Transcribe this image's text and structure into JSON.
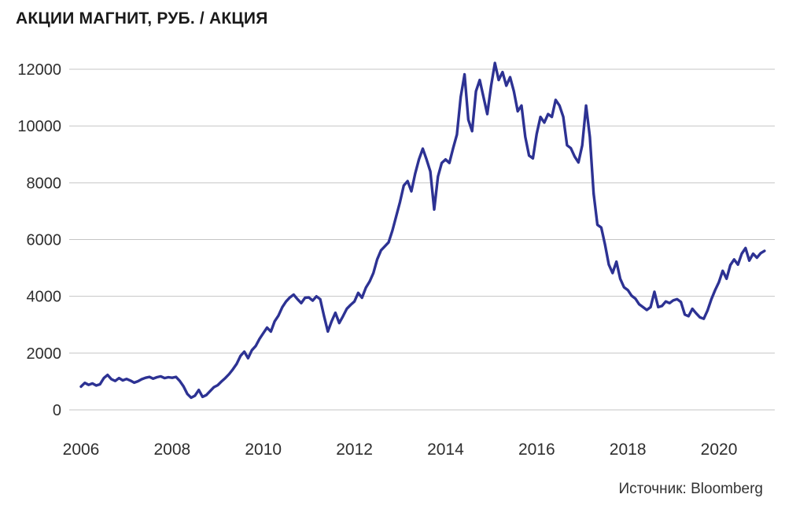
{
  "title": "АКЦИИ МАГНИТ, РУБ. / АКЦИЯ",
  "source": "Источник: Bloomberg",
  "colors": {
    "line": "#2d3293",
    "grid": "#c4c4c4",
    "tick_label": "#2e2e2e",
    "title": "#1a1a1a",
    "source": "#333333"
  },
  "chart_data": {
    "type": "line",
    "title": "АКЦИИ МАГНИТ, РУБ. / АКЦИЯ",
    "xlabel": "",
    "ylabel": "РУБ. / АКЦИЯ",
    "legend": "none",
    "grid": "horizontal",
    "x_ticks": [
      2006,
      2008,
      2010,
      2012,
      2014,
      2016,
      2018,
      2020
    ],
    "y_ticks": [
      0,
      2000,
      4000,
      6000,
      8000,
      10000,
      12000
    ],
    "xlim": [
      2006.0,
      2021.2
    ],
    "ylim": [
      0,
      12500
    ],
    "x_start": 2006.0,
    "x_step_years": 0.0833333,
    "values": [
      820,
      950,
      880,
      930,
      860,
      900,
      1120,
      1230,
      1080,
      1020,
      1120,
      1040,
      1090,
      1030,
      960,
      1010,
      1080,
      1130,
      1160,
      1100,
      1150,
      1180,
      1120,
      1150,
      1130,
      1160,
      1020,
      830,
      560,
      430,
      500,
      700,
      460,
      520,
      660,
      800,
      870,
      1000,
      1120,
      1260,
      1430,
      1620,
      1900,
      2050,
      1820,
      2100,
      2250,
      2500,
      2700,
      2900,
      2760,
      3120,
      3320,
      3620,
      3820,
      3960,
      4060,
      3900,
      3760,
      3950,
      3960,
      3850,
      4000,
      3900,
      3300,
      2760,
      3120,
      3420,
      3060,
      3300,
      3560,
      3700,
      3820,
      4120,
      3950,
      4300,
      4520,
      4820,
      5300,
      5620,
      5760,
      5900,
      6320,
      6820,
      7320,
      7900,
      8060,
      7700,
      8320,
      8820,
      9200,
      8820,
      8400,
      7060,
      8220,
      8700,
      8820,
      8700,
      9220,
      9700,
      11020,
      11820,
      10220,
      9820,
      11220,
      11620,
      11020,
      10420,
      11420,
      12220,
      11620,
      11900,
      11420,
      11720,
      11220,
      10520,
      10720,
      9620,
      8960,
      8860,
      9720,
      10320,
      10120,
      10420,
      10320,
      10920,
      10720,
      10320,
      9320,
      9220,
      8920,
      8720,
      9320,
      10720,
      9620,
      7620,
      6520,
      6420,
      5820,
      5120,
      4820,
      5220,
      4620,
      4320,
      4220,
      4020,
      3920,
      3720,
      3620,
      3520,
      3620,
      4160,
      3620,
      3660,
      3820,
      3760,
      3860,
      3900,
      3800,
      3360,
      3300,
      3560,
      3400,
      3260,
      3210,
      3500,
      3900,
      4220,
      4500,
      4900,
      4620,
      5100,
      5300,
      5120,
      5500,
      5700,
      5260,
      5500,
      5360,
      5520,
      5600
    ]
  }
}
